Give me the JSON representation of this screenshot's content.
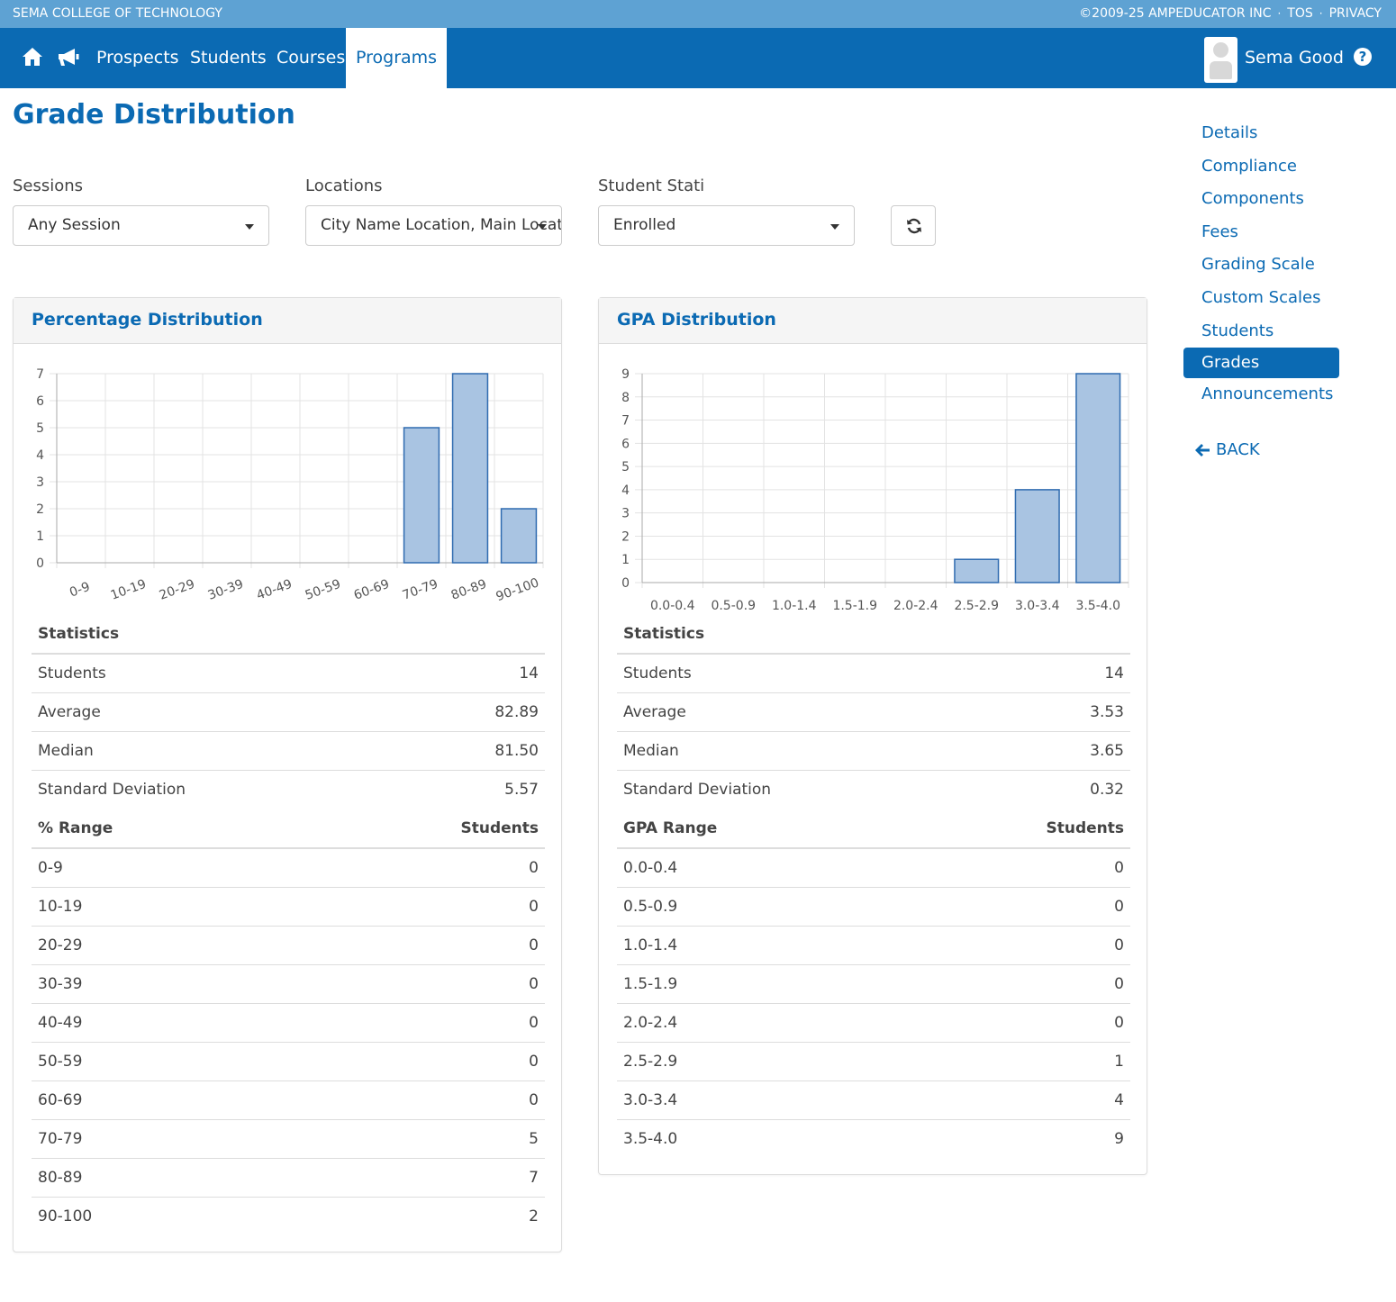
{
  "topbar": {
    "school": "SEMA COLLEGE OF TECHNOLOGY",
    "copyright": "©2009-25 AMPEDUCATOR INC",
    "tos": "TOS",
    "privacy": "PRIVACY",
    "separator": "·"
  },
  "nav": {
    "home_icon": "home-icon",
    "announce_icon": "megaphone-icon",
    "links": [
      "Prospects",
      "Students",
      "Courses",
      "Programs"
    ],
    "active": "Programs",
    "user": "Sema Good",
    "help_icon": "question-circle-icon"
  },
  "page": {
    "title": "Grade Distribution"
  },
  "filters": {
    "sessions_label": "Sessions",
    "sessions_value": "Any Session",
    "locations_label": "Locations",
    "locations_value": "City Name Location, Main Location",
    "status_label": "Student Stati",
    "status_value": "Enrolled",
    "refresh_icon": "refresh-icon"
  },
  "percentage_panel": {
    "title": "Percentage Distribution",
    "stats_heading": "Statistics",
    "stats": [
      {
        "label": "Students",
        "value": "14"
      },
      {
        "label": "Average",
        "value": "82.89"
      },
      {
        "label": "Median",
        "value": "81.50"
      },
      {
        "label": "Standard Deviation",
        "value": "5.57"
      }
    ],
    "range_heading": "% Range",
    "students_heading": "Students",
    "ranges": [
      {
        "range": "0-9",
        "count": "0"
      },
      {
        "range": "10-19",
        "count": "0"
      },
      {
        "range": "20-29",
        "count": "0"
      },
      {
        "range": "30-39",
        "count": "0"
      },
      {
        "range": "40-49",
        "count": "0"
      },
      {
        "range": "50-59",
        "count": "0"
      },
      {
        "range": "60-69",
        "count": "0"
      },
      {
        "range": "70-79",
        "count": "5"
      },
      {
        "range": "80-89",
        "count": "7"
      },
      {
        "range": "90-100",
        "count": "2"
      }
    ]
  },
  "gpa_panel": {
    "title": "GPA Distribution",
    "stats_heading": "Statistics",
    "stats": [
      {
        "label": "Students",
        "value": "14"
      },
      {
        "label": "Average",
        "value": "3.53"
      },
      {
        "label": "Median",
        "value": "3.65"
      },
      {
        "label": "Standard Deviation",
        "value": "0.32"
      }
    ],
    "range_heading": "GPA Range",
    "students_heading": "Students",
    "ranges": [
      {
        "range": "0.0-0.4",
        "count": "0"
      },
      {
        "range": "0.5-0.9",
        "count": "0"
      },
      {
        "range": "1.0-1.4",
        "count": "0"
      },
      {
        "range": "1.5-1.9",
        "count": "0"
      },
      {
        "range": "2.0-2.4",
        "count": "0"
      },
      {
        "range": "2.5-2.9",
        "count": "1"
      },
      {
        "range": "3.0-3.4",
        "count": "4"
      },
      {
        "range": "3.5-4.0",
        "count": "9"
      }
    ]
  },
  "chart_data": [
    {
      "type": "bar",
      "title": "Percentage Distribution",
      "categories": [
        "0-9",
        "10-19",
        "20-29",
        "30-39",
        "40-49",
        "50-59",
        "60-69",
        "70-79",
        "80-89",
        "90-100"
      ],
      "values": [
        0,
        0,
        0,
        0,
        0,
        0,
        0,
        5,
        7,
        2
      ],
      "xlabel": "",
      "ylabel": "",
      "ylim": [
        0,
        7
      ],
      "yticks": [
        0,
        1,
        2,
        3,
        4,
        5,
        6,
        7
      ],
      "grid": true,
      "bar_color": "#a9c4e2",
      "bar_edge": "#2f6bb0"
    },
    {
      "type": "bar",
      "title": "GPA Distribution",
      "categories": [
        "0.0-0.4",
        "0.5-0.9",
        "1.0-1.4",
        "1.5-1.9",
        "2.0-2.4",
        "2.5-2.9",
        "3.0-3.4",
        "3.5-4.0"
      ],
      "values": [
        0,
        0,
        0,
        0,
        0,
        1,
        4,
        9
      ],
      "xlabel": "",
      "ylabel": "",
      "ylim": [
        0,
        9
      ],
      "yticks": [
        0,
        1,
        2,
        3,
        4,
        5,
        6,
        7,
        8,
        9
      ],
      "grid": true,
      "bar_color": "#a9c4e2",
      "bar_edge": "#2f6bb0"
    }
  ],
  "sidenav": {
    "items": [
      "Details",
      "Compliance",
      "Components",
      "Fees",
      "Grading Scale",
      "Custom Scales",
      "Students",
      "Grades",
      "Announcements"
    ],
    "active": "Grades",
    "back_label": "BACK",
    "back_icon": "arrow-left-icon"
  },
  "colors": {
    "brand": "#0b6ab3",
    "topbar": "#5ea2d3"
  }
}
